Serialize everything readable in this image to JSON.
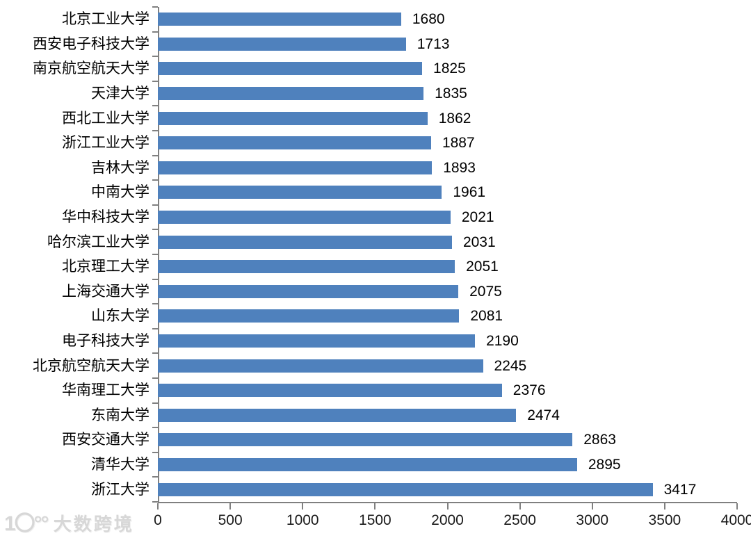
{
  "chart_data": {
    "type": "bar",
    "orientation": "horizontal",
    "title": "",
    "xlabel": "",
    "ylabel": "",
    "categories": [
      "北京工业大学",
      "西安电子科技大学",
      "南京航空航天大学",
      "天津大学",
      "西北工业大学",
      "浙江工业大学",
      "吉林大学",
      "中南大学",
      "华中科技大学",
      "哈尔滨工业大学",
      "北京理工大学",
      "上海交通大学",
      "山东大学",
      "电子科技大学",
      "北京航空航天大学",
      "华南理工大学",
      "东南大学",
      "西安交通大学",
      "清华大学",
      "浙江大学"
    ],
    "values": [
      1680,
      1713,
      1825,
      1835,
      1862,
      1887,
      1893,
      1961,
      2021,
      2031,
      2051,
      2075,
      2081,
      2190,
      2245,
      2376,
      2474,
      2863,
      2895,
      3417
    ],
    "xlim": [
      0,
      4000
    ],
    "x_ticks": [
      0,
      500,
      1000,
      1500,
      2000,
      2500,
      3000,
      3500,
      4000
    ],
    "bar_color": "#4F81BD",
    "axis_color": "#808080",
    "grid": false,
    "legend": null,
    "value_labels_shown": true
  },
  "watermark": {
    "logo": "1〇°°",
    "text": "大数跨境"
  }
}
